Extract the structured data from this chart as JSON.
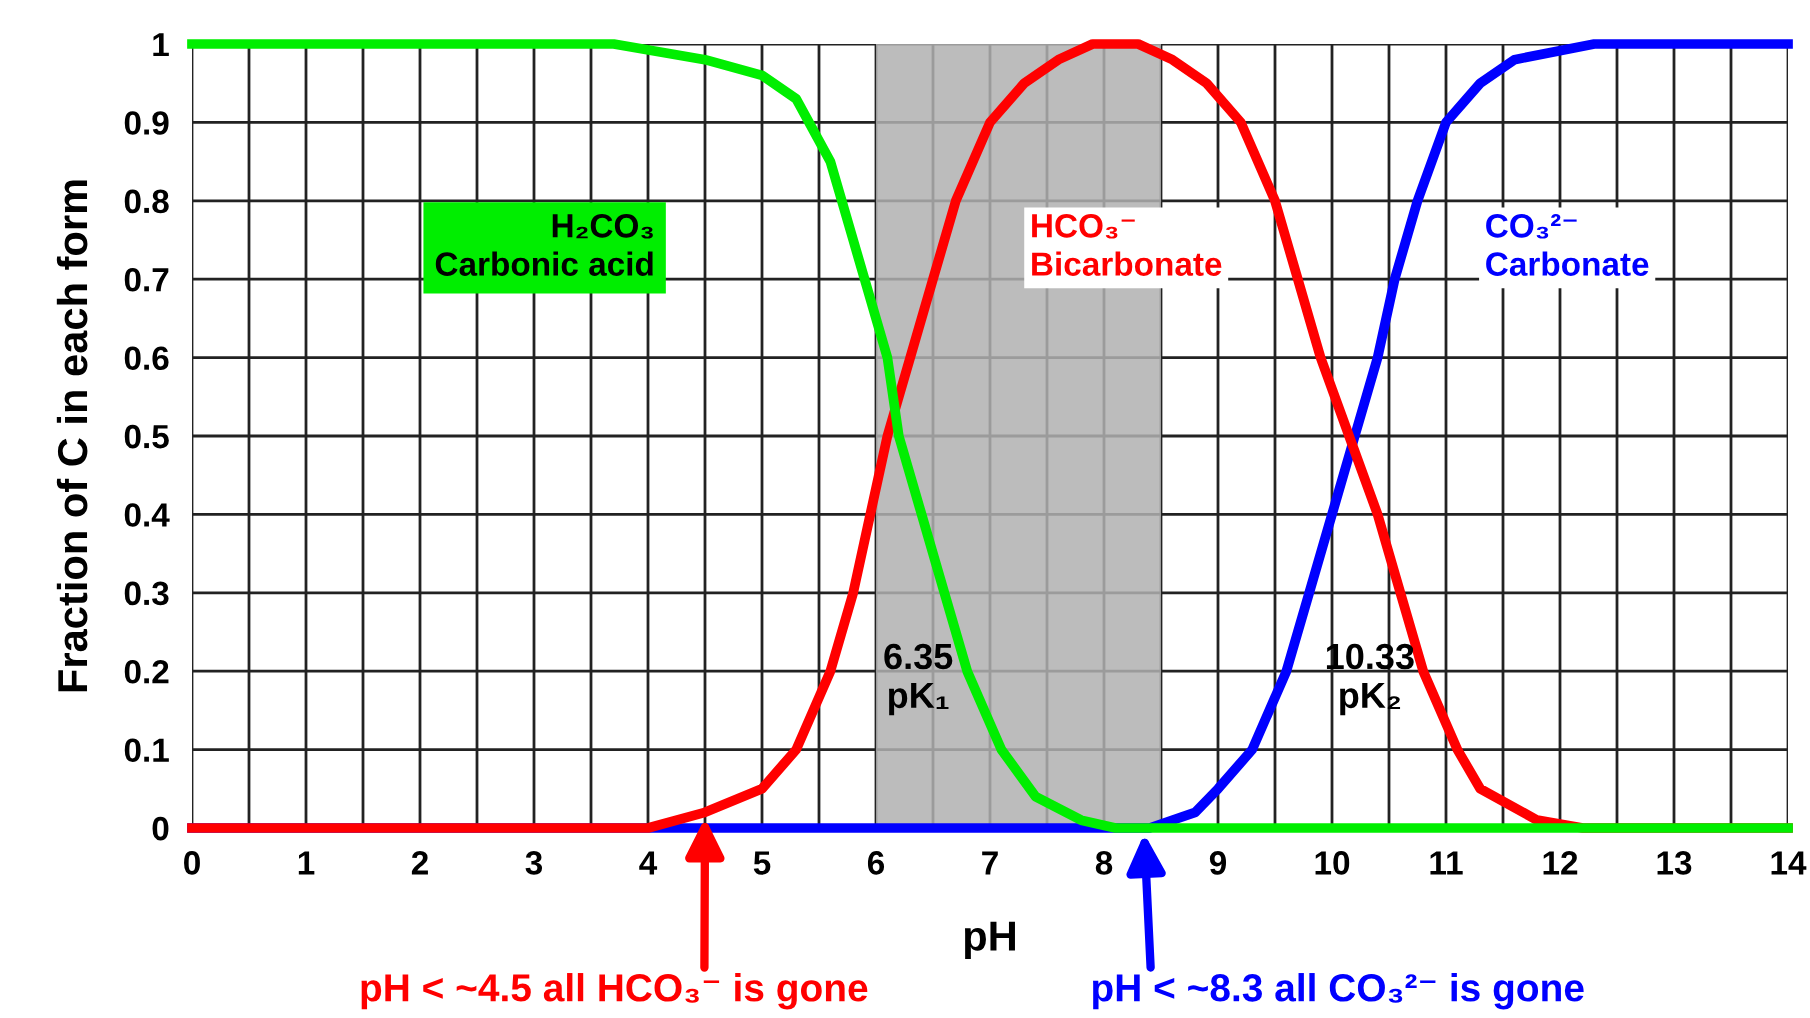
{
  "chart_data": {
    "type": "line",
    "xlabel": "pH",
    "ylabel": "Fraction of C in each form",
    "xlim": [
      0,
      14
    ],
    "ylim": [
      0,
      1
    ],
    "xticks": [
      0,
      {
        "value": 0.5,
        "label": null
      },
      1,
      {
        "value": 1.5,
        "label": null
      },
      2,
      {
        "value": 2.5,
        "label": null
      },
      3,
      {
        "value": 3.5,
        "label": null
      },
      4,
      {
        "value": 4.5,
        "label": null
      },
      5,
      {
        "value": 5.5,
        "label": null
      },
      6,
      {
        "value": 6.5,
        "label": null
      },
      7,
      {
        "value": 7.5,
        "label": null
      },
      8,
      {
        "value": 8.5,
        "label": null
      },
      9,
      {
        "value": 9.5,
        "label": null
      },
      10,
      {
        "value": 10.5,
        "label": null
      },
      11,
      {
        "value": 11.5,
        "label": null
      },
      12,
      {
        "value": 12.5,
        "label": null
      },
      13,
      {
        "value": 13.5,
        "label": null
      },
      14
    ],
    "yticks": [
      0,
      0.1,
      0.2,
      0.3,
      0.4,
      0.5,
      0.6,
      0.7,
      0.8,
      0.9,
      1
    ],
    "grid": true,
    "marker": "none",
    "line_style": "solid",
    "legend": false,
    "series": [
      {
        "name": "H₂CO₃\nCarbonic acid",
        "color": "#00ee00",
        "x": [
          0,
          3.7,
          4.5,
          5.0,
          5.3,
          5.6,
          5.8,
          6.1,
          6.2,
          6.4,
          6.6,
          6.8,
          7.1,
          7.4,
          7.8,
          8.1,
          14
        ],
        "values": [
          1,
          1,
          0.98,
          0.96,
          0.93,
          0.85,
          0.75,
          0.6,
          0.5,
          0.4,
          0.3,
          0.2,
          0.1,
          0.04,
          0.01,
          0,
          0
        ]
      },
      {
        "name": "HCO₃⁻\nBicarbonate",
        "color": "#ff0000",
        "x": [
          0,
          4.0,
          4.5,
          5.0,
          5.3,
          5.6,
          5.8,
          5.95,
          6.1,
          6.3,
          6.5,
          6.7,
          7.0,
          7.3,
          7.6,
          7.9,
          8.3,
          8.6,
          8.9,
          9.2,
          9.5,
          9.7,
          9.9,
          10.15,
          10.4,
          10.6,
          10.8,
          11.1,
          11.3,
          11.8,
          12.2,
          14
        ],
        "values": [
          0,
          0,
          0.02,
          0.05,
          0.1,
          0.2,
          0.3,
          0.4,
          0.5,
          0.6,
          0.7,
          0.8,
          0.9,
          0.95,
          0.98,
          1,
          1,
          0.98,
          0.95,
          0.9,
          0.8,
          0.7,
          0.6,
          0.5,
          0.4,
          0.3,
          0.2,
          0.1,
          0.05,
          0.01,
          0,
          0
        ]
      },
      {
        "name": "CO₃²⁻\nCarbonate",
        "color": "#0000ff",
        "x": [
          0,
          8.4,
          8.8,
          9.0,
          9.3,
          9.6,
          9.8,
          10.0,
          10.2,
          10.4,
          10.55,
          10.75,
          11.0,
          11.3,
          11.6,
          12.3,
          14
        ],
        "values": [
          0,
          0,
          0.02,
          0.05,
          0.1,
          0.2,
          0.3,
          0.4,
          0.5,
          0.6,
          0.7,
          0.8,
          0.9,
          0.95,
          0.98,
          1,
          1
        ]
      }
    ],
    "bands": [
      {
        "axis": "x",
        "from": 6,
        "to": 8.5,
        "color": "#b0b0b0"
      }
    ],
    "annotations": [
      "6.35\npK₁",
      "10.33\npK₂",
      {
        "text": "pH < ~4.5 all HCO₃⁻ is gone",
        "x": 4.5,
        "y": 0.02
      },
      {
        "text": "pH < ~8.3 all CO₃²⁻ is gone",
        "x": 8.35,
        "y": 0
      }
    ]
  }
}
